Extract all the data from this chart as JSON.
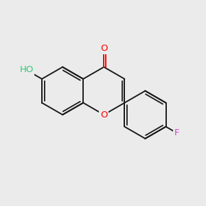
{
  "background_color": "#ebebeb",
  "bond_color": "#1a1a1a",
  "bond_width": 1.4,
  "atom_colors": {
    "O": "#ff0000",
    "HO_text": "#2ecc71",
    "F": "#cc44cc"
  },
  "figsize": [
    3.0,
    3.0
  ],
  "dpi": 100,
  "xlim": [
    0,
    10
  ],
  "ylim": [
    0,
    10
  ],
  "bl": 1.18
}
